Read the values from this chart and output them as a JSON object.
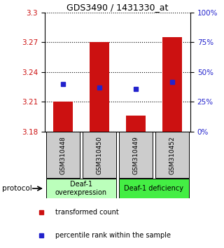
{
  "title": "GDS3490 / 1431330_at",
  "samples": [
    "GSM310448",
    "GSM310450",
    "GSM310449",
    "GSM310452"
  ],
  "bar_baseline": 3.18,
  "bar_tops": [
    3.21,
    3.27,
    3.196,
    3.275
  ],
  "blue_y": [
    3.228,
    3.224,
    3.223,
    3.23
  ],
  "ylim": [
    3.18,
    3.3
  ],
  "yticks_left": [
    3.18,
    3.21,
    3.24,
    3.27,
    3.3
  ],
  "yticks_right_pct": [
    0,
    25,
    50,
    75,
    100
  ],
  "yticks_right_vals": [
    3.18,
    3.21,
    3.24,
    3.27,
    3.3
  ],
  "bar_color": "#cc1111",
  "blue_color": "#2222cc",
  "protocol_groups": [
    {
      "label": "Deaf-1\noverexpression",
      "samples": [
        0,
        1
      ],
      "color": "#bbffbb"
    },
    {
      "label": "Deaf-1 deficiency",
      "samples": [
        2,
        3
      ],
      "color": "#44ee44"
    }
  ],
  "legend_items": [
    {
      "label": "transformed count",
      "color": "#cc1111"
    },
    {
      "label": "percentile rank within the sample",
      "color": "#2222cc"
    }
  ],
  "sample_box_color": "#cccccc",
  "fig_bg": "#ffffff",
  "left_axis_color": "#cc1111",
  "right_axis_color": "#2222cc",
  "bar_width": 0.55,
  "protocol_label": "protocol"
}
